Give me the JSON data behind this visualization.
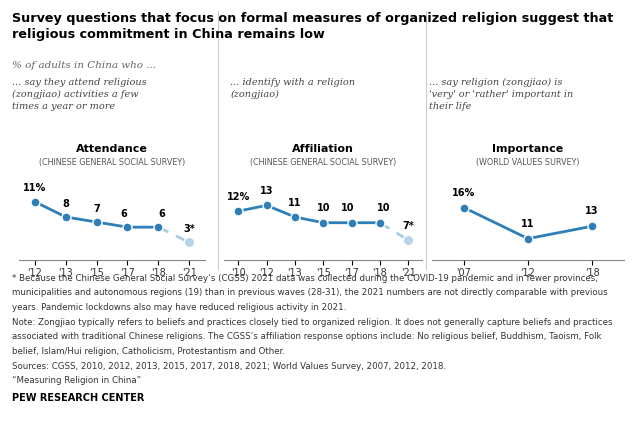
{
  "title": "Survey questions that focus on formal measures of organized religion suggest that\nreligious commitment in China remains low",
  "subtitle": "% of adults in China who ...",
  "panel1": {
    "label": "... say they attend religious\n(zongjiao) activities a few\ntimes a year or more",
    "title": "Attendance",
    "subtitle": "(CHINESE GENERAL SOCIAL SURVEY)",
    "years": [
      "'12",
      "'13",
      "'15",
      "'17",
      "'18",
      "'21"
    ],
    "values": [
      11,
      8,
      7,
      6,
      6,
      3
    ],
    "dashed_from": 4,
    "last_label": "3*",
    "first_label": "11%",
    "labels": [
      "11%",
      "8",
      "7",
      "6",
      "6",
      "3*"
    ]
  },
  "panel2": {
    "label": "... identify with a religion\n(zongjiao)",
    "title": "Affiliation",
    "subtitle": "(CHINESE GENERAL SOCIAL SURVEY)",
    "years": [
      "'10",
      "'12",
      "'13",
      "'15",
      "'17",
      "'18",
      "'21"
    ],
    "values": [
      12,
      13,
      11,
      10,
      10,
      10,
      7
    ],
    "dashed_from": 5,
    "last_label": "7*",
    "first_label": "12%",
    "labels": [
      "12%",
      "13",
      "11",
      "10",
      "10",
      "10",
      "7*"
    ]
  },
  "panel3": {
    "label": "... say religion (zongjiao) is\n'very' or 'rather' important in\ntheir life",
    "title": "Importance",
    "subtitle": "(WORLD VALUES SURVEY)",
    "years": [
      "'07",
      "'12",
      "'18"
    ],
    "values": [
      16,
      11,
      13
    ],
    "dashed_from": null,
    "last_label": "13",
    "first_label": "16%",
    "labels": [
      "16%",
      "11",
      "13"
    ]
  },
  "line_color": "#2e7eb8",
  "dashed_color": "#a8cde0",
  "dot_dashed_color": "#b8d4e8",
  "divider_color": "#cccccc",
  "footnote_lines": [
    "* Because the Chinese General Social Survey’s (CGSS) 2021 data was collected during the COVID-19 pandemic and in fewer provinces,",
    "municipalities and autonomous regions (19) than in previous waves (28-31), the 2021 numbers are not directly comparable with previous",
    "years. Pandemic lockdowns also may have reduced religious activity in 2021.",
    "Note: Zongjiao typically refers to beliefs and practices closely tied to organized religion. It does not generally capture beliefs and practices",
    "associated with traditional Chinese religions. The CGSS’s affiliation response options include: No religious belief, Buddhism, Taoism, Folk",
    "belief, Islam/Hui religion, Catholicism, Protestantism and Other.",
    "Sources: CGSS, 2010, 2012, 2013, 2015, 2017, 2018, 2021; World Values Survey, 2007, 2012, 2018.",
    "“Measuring Religion in China”"
  ],
  "pew": "PEW RESEARCH CENTER"
}
